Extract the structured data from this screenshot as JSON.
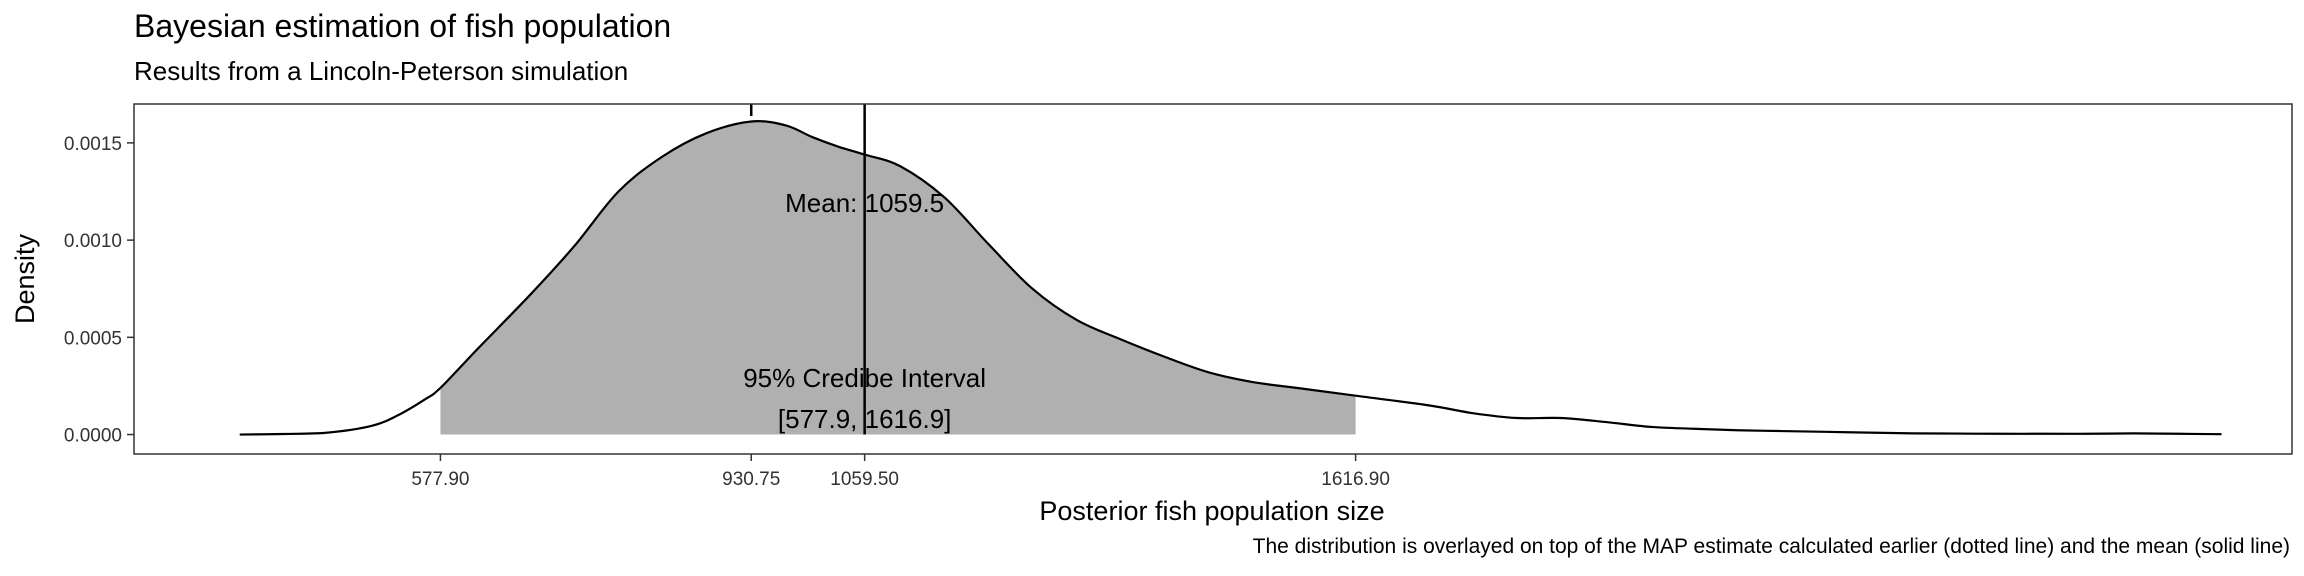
{
  "chart_data": {
    "type": "area",
    "title": "Bayesian estimation of fish population",
    "subtitle": "Results from a Lincoln-Peterson simulation",
    "caption": "The distribution is overlayed on top of the MAP estimate calculated earlier (dotted line) and the mean (solid line)",
    "xlabel": "Posterior fish population size",
    "ylabel": "Density",
    "xlim": [
      230,
      2680
    ],
    "ylim": [
      -0.0001,
      0.0017
    ],
    "x_ticks": [
      {
        "value": 577.9,
        "label": "577.90"
      },
      {
        "value": 930.75,
        "label": "930.75"
      },
      {
        "value": 1059.5,
        "label": "1059.50"
      },
      {
        "value": 1616.9,
        "label": "1616.90"
      }
    ],
    "y_ticks": [
      {
        "value": 0.0,
        "label": "0.0000"
      },
      {
        "value": 0.0005,
        "label": "0.0005"
      },
      {
        "value": 0.001,
        "label": "0.0010"
      },
      {
        "value": 0.0015,
        "label": "0.0015"
      }
    ],
    "grid": false,
    "fill_color": "#b0b0b0",
    "line_color": "#000000",
    "density": {
      "x": [
        350,
        400,
        450,
        500,
        530,
        560,
        577.9,
        620,
        680,
        730,
        780,
        830,
        880,
        930.75,
        970,
        1000,
        1030,
        1059.5,
        1100,
        1150,
        1200,
        1250,
        1300,
        1350,
        1400,
        1450,
        1500,
        1550,
        1616.9,
        1700,
        1750,
        1800,
        1850,
        1900,
        1950,
        2000,
        2050,
        2100,
        2150,
        2200,
        2250,
        2300,
        2350,
        2400,
        2450,
        2500,
        2550,
        2600
      ],
      "y": [
        0.0,
        3e-06,
        1e-05,
        4.5e-05,
        0.0001,
        0.00018,
        0.00024,
        0.00044,
        0.00072,
        0.00097,
        0.00125,
        0.00143,
        0.00155,
        0.00161,
        0.00159,
        0.00153,
        0.00148,
        0.00144,
        0.00138,
        0.00122,
        0.00098,
        0.00075,
        0.00059,
        0.00049,
        0.0004,
        0.00032,
        0.00027,
        0.00024,
        0.0002,
        0.00015,
        0.00011,
        8.5e-05,
        8.5e-05,
        6.5e-05,
        4e-05,
        3e-05,
        2.2e-05,
        1.8e-05,
        1.4e-05,
        1e-05,
        6e-06,
        5e-06,
        4e-06,
        4e-06,
        4e-06,
        6e-06,
        4e-06,
        2e-06
      ]
    },
    "credible_interval": {
      "low": 577.9,
      "high": 1616.9,
      "level": "95%"
    },
    "map_estimate": 930.75,
    "mean": 1059.5,
    "annotations": [
      {
        "text": "Mean: 1059.5",
        "x": 1059.5,
        "y": 0.00119
      },
      {
        "text": "95% Credibe Interval",
        "x": 1059.5,
        "y": 0.00029
      },
      {
        "text": "[577.9, 1616.9]",
        "x": 1059.5,
        "y": 8e-05
      }
    ]
  }
}
